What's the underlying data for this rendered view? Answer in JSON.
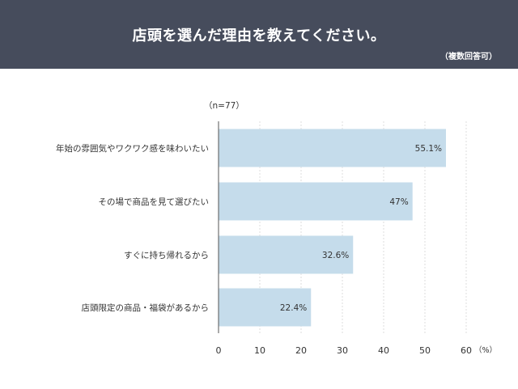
{
  "header": {
    "title": "店頭を選んだ理由を教えてください。",
    "subtitle": "（複数回答可）"
  },
  "colors": {
    "header_bg": "#464c5c",
    "bar": "#c5dceb",
    "grid": "#dddddd",
    "axis": "#555555",
    "text": "#333333"
  },
  "chart_data": {
    "type": "bar",
    "orientation": "horizontal",
    "title": "店頭を選んだ理由を教えてください。",
    "note": "（n=77）",
    "categories": [
      "年始の雰囲気やワクワク感を味わいたい",
      "その場で商品を見て選びたい",
      "すぐに持ち帰れるから",
      "店頭限定の商品・福袋があるから"
    ],
    "values": [
      55.1,
      47,
      32.6,
      22.4
    ],
    "value_labels": [
      "55.1%",
      "47%",
      "32.6%",
      "22.4%"
    ],
    "xlim": [
      0,
      60
    ],
    "xticks": [
      0,
      10,
      20,
      30,
      40,
      50,
      60
    ],
    "xunit": "（%）",
    "grid": true
  }
}
